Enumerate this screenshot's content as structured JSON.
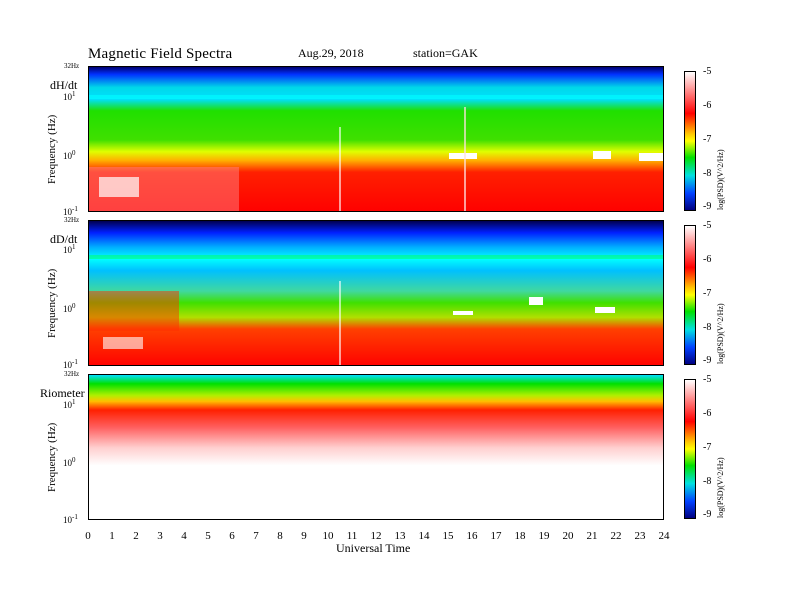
{
  "header": {
    "title": "Magnetic  Field  Spectra",
    "date": "Aug.29, 2018",
    "station": "station=GAK"
  },
  "panels": [
    {
      "label": "dH/dt",
      "ylabel": "Frequency  (Hz)",
      "top_tick": "32Hz"
    },
    {
      "label": "dD/dt",
      "ylabel": "Frequency  (Hz)",
      "top_tick": "32Hz"
    },
    {
      "label": "Riometer",
      "ylabel": "Frequency  (Hz)",
      "top_tick": "32Hz"
    }
  ],
  "ytick_labels": {
    "t1": "10",
    "t1_exp": "1",
    "t0": "10",
    "t0_exp": "0",
    "tm1": "10",
    "tm1_exp": "-1"
  },
  "colorbar": {
    "ticks": [
      "-5",
      "-6",
      "-7",
      "-8",
      "-9"
    ],
    "label": "log(PSD)(V^2/Hz)"
  },
  "xaxis": {
    "label": "Universal Time",
    "ticks": [
      "0",
      "1",
      "2",
      "3",
      "4",
      "5",
      "6",
      "7",
      "8",
      "9",
      "10",
      "11",
      "12",
      "13",
      "14",
      "15",
      "16",
      "17",
      "18",
      "19",
      "20",
      "21",
      "22",
      "23",
      "24"
    ]
  },
  "chart_data": {
    "type": "heatmap",
    "title": "Magnetic  Field  Spectra",
    "subtitle": "Aug.29, 2018   station=GAK",
    "xlabel": "Universal Time",
    "ylabel": "Frequency  (Hz)",
    "x_range": [
      0,
      24
    ],
    "y_range_hz": [
      0.1,
      32
    ],
    "y_scale": "log",
    "color_range_log_psd": [
      -9,
      -5
    ],
    "colorbar_label": "log(PSD)(V^2/Hz)",
    "panels": [
      "dH/dt",
      "dD/dt",
      "Riometer"
    ],
    "colors": {
      "high": "#ffffff",
      "mid_high": "#ff0000",
      "mid": "#00e000",
      "mid_low": "#00e0e0",
      "low": "#000080"
    }
  }
}
